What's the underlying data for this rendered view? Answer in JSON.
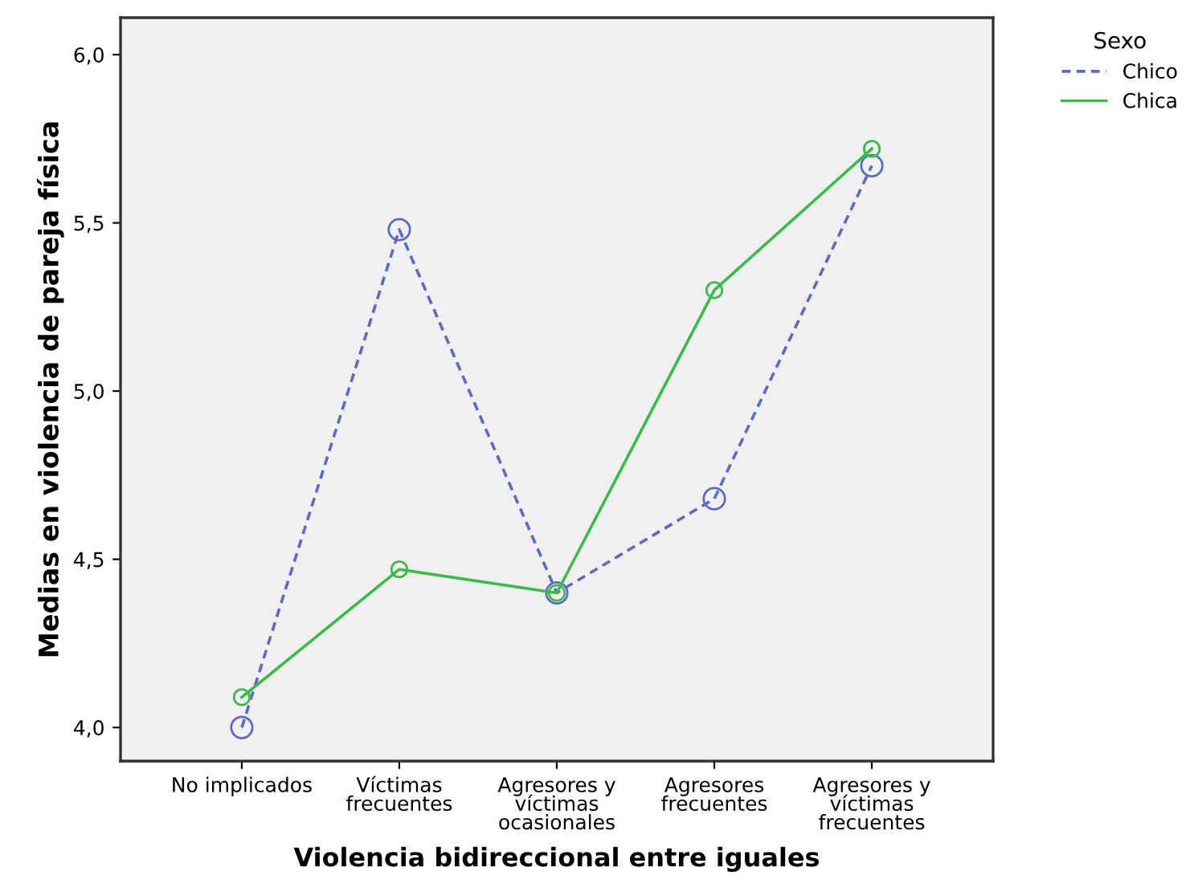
{
  "chart_data": {
    "type": "line",
    "xlabel": "Violencia bidireccional entre iguales",
    "ylabel": "Medias en violencia de pareja física",
    "categories": [
      "No implicados",
      "Víctimas\nfrecuentes",
      "Agresores y\nvíctimas\nocasionales",
      "Agresores\nfrecuentes",
      "Agresores y\nvíctimas\nfrecuentes"
    ],
    "series": [
      {
        "name": "Chico",
        "color": "#5b6bc0",
        "line_style": "dashed",
        "values": [
          4.0,
          5.48,
          4.4,
          4.68,
          5.67
        ]
      },
      {
        "name": "Chica",
        "color": "#3dba4a",
        "line_style": "solid",
        "values": [
          4.09,
          4.47,
          4.4,
          5.3,
          5.72
        ]
      }
    ],
    "ylim": [
      3.9,
      6.11
    ],
    "yticks": [
      {
        "value": 4.0,
        "label": "4,0"
      },
      {
        "value": 4.5,
        "label": "4,5"
      },
      {
        "value": 5.0,
        "label": "5,0"
      },
      {
        "value": 5.5,
        "label": "5,5"
      },
      {
        "value": 6.0,
        "label": "6,0"
      }
    ],
    "marker": "circle",
    "grid": false,
    "legend": "top right",
    "legend_title": "Sexo"
  }
}
